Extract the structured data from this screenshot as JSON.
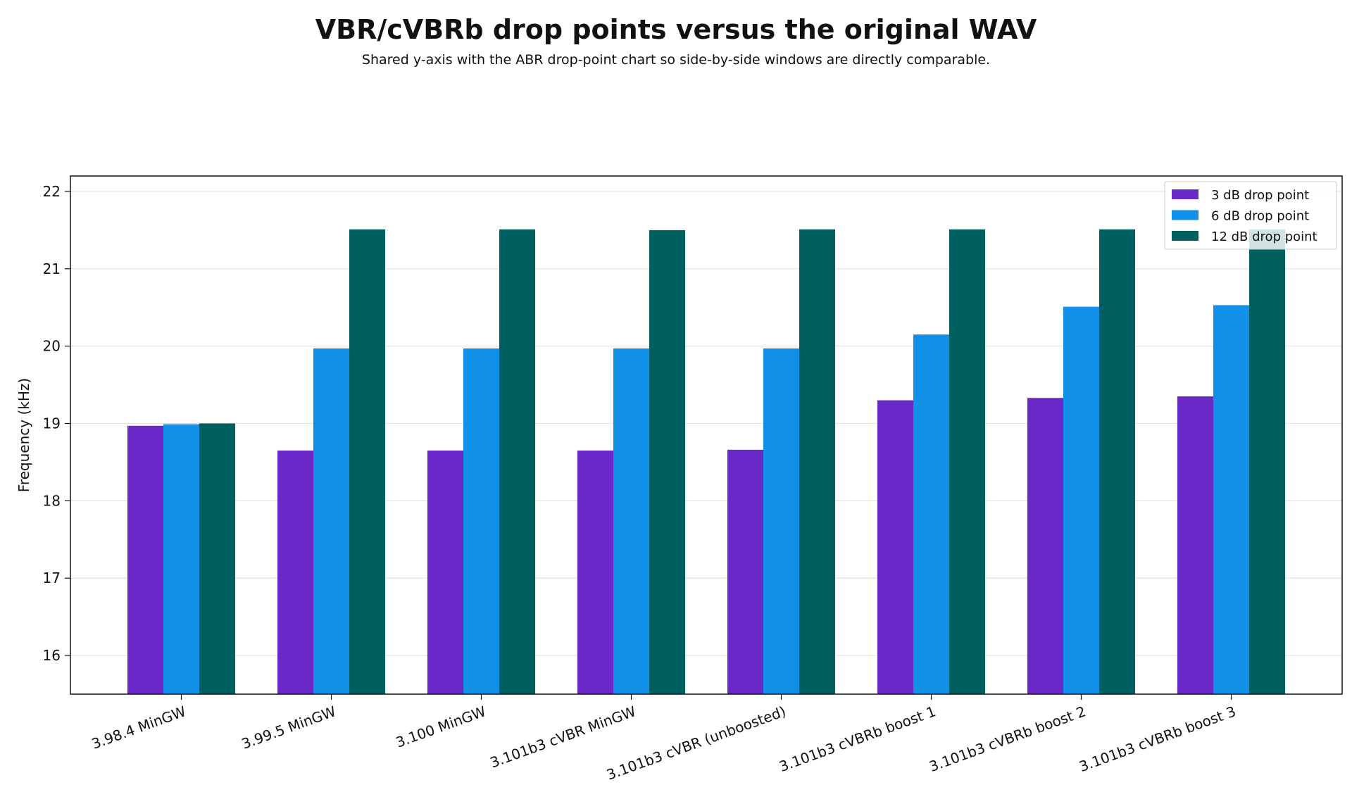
{
  "chart_data": {
    "type": "bar",
    "title": "VBR/cVBRb drop points versus the original WAV",
    "subtitle": "Shared y-axis with the ABR drop-point chart so side-by-side windows are directly comparable.",
    "xlabel": "",
    "ylabel": "Frequency (kHz)",
    "ylim": [
      15.5,
      22.2
    ],
    "yticks": [
      16,
      17,
      18,
      19,
      20,
      21,
      22
    ],
    "grid": "horizontal",
    "legend_position": "top-right",
    "categories": [
      "3.98.4 MinGW",
      "3.99.5 MinGW",
      "3.100 MinGW",
      "3.101b3 cVBR MinGW",
      "3.101b3 cVBR (unboosted)",
      "3.101b3 cVBRb boost 1",
      "3.101b3 cVBRb boost 2",
      "3.101b3 cVBRb boost 3"
    ],
    "series": [
      {
        "name": "3 dB drop point",
        "color": "#6a28c8",
        "values": [
          18.97,
          18.65,
          18.65,
          18.65,
          18.66,
          19.3,
          19.33,
          19.35
        ]
      },
      {
        "name": "6 dB drop point",
        "color": "#128fe6",
        "values": [
          18.99,
          19.97,
          19.97,
          19.97,
          19.97,
          20.15,
          20.51,
          20.53
        ]
      },
      {
        "name": "12 dB drop point",
        "color": "#005f5f",
        "values": [
          19.0,
          21.51,
          21.51,
          21.5,
          21.51,
          21.51,
          21.51,
          21.51
        ]
      }
    ]
  }
}
